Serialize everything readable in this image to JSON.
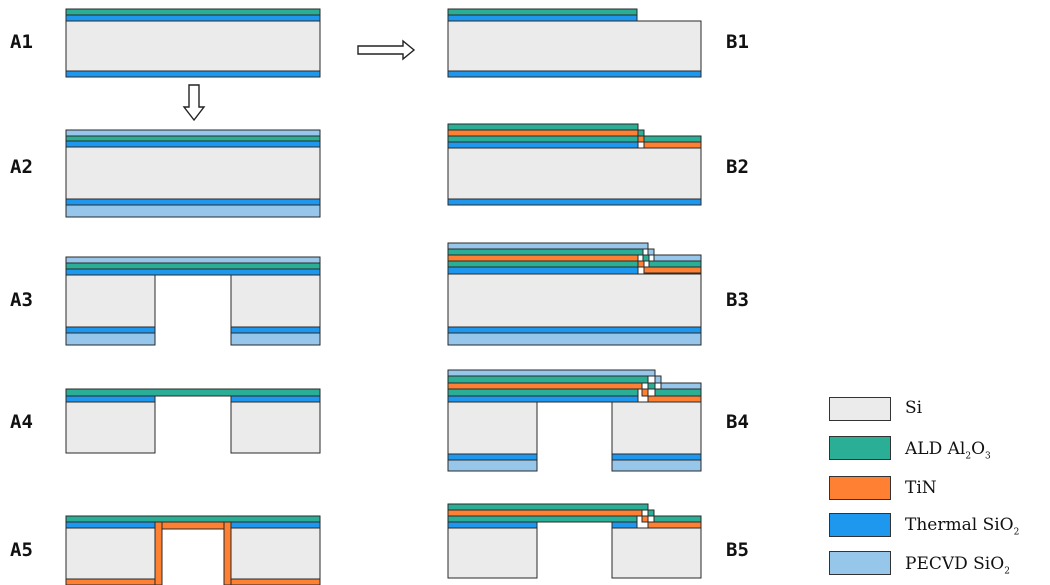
{
  "colors": {
    "si": "#EBEBEB",
    "ald": "#2BAE96",
    "tin": "#FF8033",
    "thermal": "#1E98EE",
    "pecvd": "#96C7EA",
    "outline": "#2A2A2A"
  },
  "steps": {
    "A1": "A1",
    "A2": "A2",
    "A3": "A3",
    "A4": "A4",
    "A5": "A5",
    "B1": "B1",
    "B2": "B2",
    "B3": "B3",
    "B4": "B4",
    "B5": "B5"
  },
  "legend": [
    {
      "key": "si",
      "label": "Si",
      "sub": "",
      "tail": "",
      "sub2": ""
    },
    {
      "key": "ald",
      "label": "ALD Al",
      "sub": "2",
      "tail": "O",
      "sub2": "3"
    },
    {
      "key": "tin",
      "label": "TiN",
      "sub": "",
      "tail": "",
      "sub2": ""
    },
    {
      "key": "thermal",
      "label": "Thermal SiO",
      "sub": "2",
      "tail": "",
      "sub2": ""
    },
    {
      "key": "pecvd",
      "label": "PECVD SiO",
      "sub": "2",
      "tail": "",
      "sub2": ""
    }
  ],
  "arrows": [
    "right-arrow",
    "down-arrow"
  ]
}
